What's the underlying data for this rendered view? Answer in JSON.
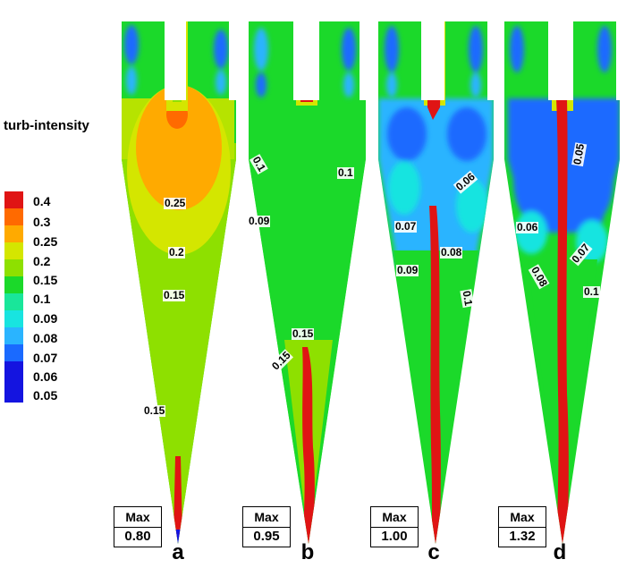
{
  "legend": {
    "title": "turb-intensity",
    "levels": [
      {
        "label": "0.4",
        "color": "#e01414"
      },
      {
        "label": "0.3",
        "color": "#ff6a00"
      },
      {
        "label": "0.25",
        "color": "#ffaa00"
      },
      {
        "label": "0.2",
        "color": "#d4e600"
      },
      {
        "label": "0.15",
        "color": "#8ee000"
      },
      {
        "label": "0.1",
        "color": "#1bd92a"
      },
      {
        "label": "0.09",
        "color": "#19e69a"
      },
      {
        "label": "0.08",
        "color": "#18e4e0"
      },
      {
        "label": "0.07",
        "color": "#2ab4ff"
      },
      {
        "label": "0.06",
        "color": "#1a6aff"
      },
      {
        "label": "0.05",
        "color": "#1414e0"
      }
    ]
  },
  "panels": [
    {
      "letter": "a",
      "max_title": "Max",
      "max_value": "0.80",
      "contour_labels": [
        "0.25",
        "0.2",
        "0.15",
        "0.15"
      ]
    },
    {
      "letter": "b",
      "max_title": "Max",
      "max_value": "0.95",
      "contour_labels": [
        "0.1",
        "0.1",
        "0.09",
        "0.15",
        "0.15"
      ]
    },
    {
      "letter": "c",
      "max_title": "Max",
      "max_value": "1.00",
      "contour_labels": [
        "0.06",
        "0.07",
        "0.08",
        "0.09",
        "0.1"
      ]
    },
    {
      "letter": "d",
      "max_title": "Max",
      "max_value": "1.32",
      "contour_labels": [
        "0.05",
        "0.06",
        "0.07",
        "0.08",
        "0.1"
      ]
    }
  ]
}
